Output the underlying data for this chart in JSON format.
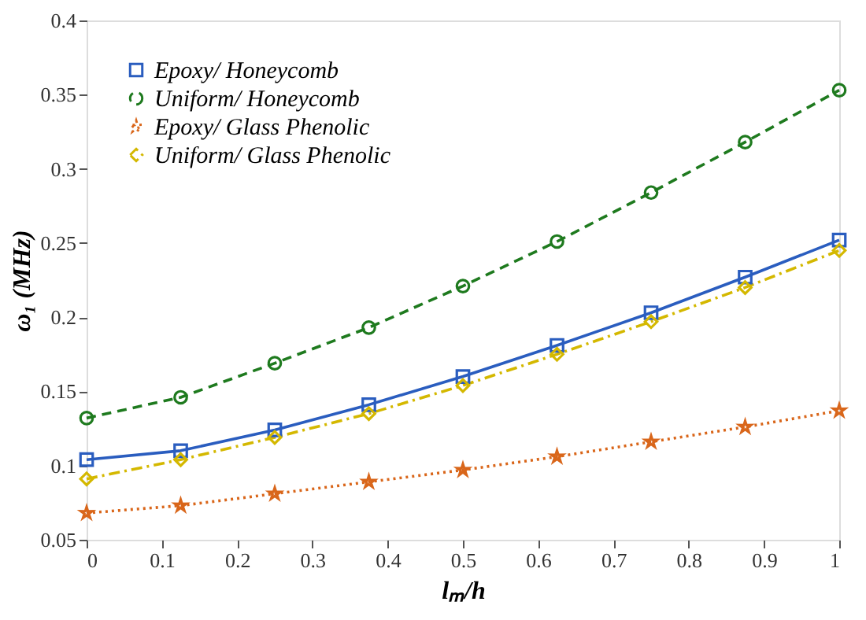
{
  "chart_data": {
    "type": "line",
    "xlabel": "lₘ/h",
    "ylabel": "ω₁ (MHz)",
    "x": [
      0,
      0.125,
      0.25,
      0.375,
      0.5,
      0.625,
      0.75,
      0.875,
      1
    ],
    "series": [
      {
        "name": "Epoxy/ Honeycomb",
        "color": "#2a5dbf",
        "marker": "square",
        "line_style": "solid",
        "values": [
          0.104,
          0.11,
          0.124,
          0.141,
          0.16,
          0.181,
          0.203,
          0.227,
          0.252
        ]
      },
      {
        "name": "Uniform/ Honeycomb",
        "color": "#1e7a1e",
        "marker": "circle",
        "line_style": "dashed",
        "values": [
          0.132,
          0.146,
          0.169,
          0.193,
          0.221,
          0.251,
          0.284,
          0.318,
          0.353
        ]
      },
      {
        "name": "Epoxy/ Glass Phenolic",
        "color": "#d9661a",
        "marker": "star",
        "line_style": "dotted",
        "values": [
          0.068,
          0.073,
          0.081,
          0.089,
          0.097,
          0.106,
          0.116,
          0.126,
          0.137
        ]
      },
      {
        "name": "Uniform/ Glass Phenolic",
        "color": "#d4b800",
        "marker": "diamond",
        "line_style": "dashdot",
        "values": [
          0.091,
          0.104,
          0.119,
          0.135,
          0.154,
          0.175,
          0.197,
          0.22,
          0.245
        ]
      }
    ],
    "xlim": [
      0,
      1
    ],
    "xticks": [
      0,
      0.1,
      0.2,
      0.3,
      0.4,
      0.5,
      0.6,
      0.7,
      0.8,
      0.9,
      1
    ],
    "ylim": [
      0.05,
      0.4
    ],
    "yticks": [
      0.05,
      0.1,
      0.15,
      0.2,
      0.25,
      0.3,
      0.35,
      0.4
    ],
    "grid": false,
    "legend": "top left"
  }
}
